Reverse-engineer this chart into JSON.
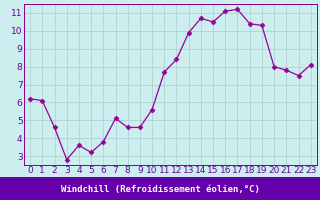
{
  "x": [
    0,
    1,
    2,
    3,
    4,
    5,
    6,
    7,
    8,
    9,
    10,
    11,
    12,
    13,
    14,
    15,
    16,
    17,
    18,
    19,
    20,
    21,
    22,
    23
  ],
  "y": [
    6.2,
    6.1,
    4.6,
    2.8,
    3.6,
    3.2,
    3.8,
    5.1,
    4.6,
    4.6,
    5.6,
    7.7,
    8.4,
    9.9,
    10.7,
    10.5,
    11.1,
    11.2,
    10.4,
    10.3,
    8.0,
    7.8,
    7.5,
    8.1
  ],
  "line_color": "#990099",
  "marker": "D",
  "marker_size": 2.5,
  "bg_color": "#cceeee",
  "grid_color": "#aacccc",
  "xlim": [
    -0.5,
    23.5
  ],
  "ylim": [
    2.5,
    11.5
  ],
  "yticks": [
    3,
    4,
    5,
    6,
    7,
    8,
    9,
    10,
    11
  ],
  "xticks": [
    0,
    1,
    2,
    3,
    4,
    5,
    6,
    7,
    8,
    9,
    10,
    11,
    12,
    13,
    14,
    15,
    16,
    17,
    18,
    19,
    20,
    21,
    22,
    23
  ],
  "xlabel": "Windchill (Refroidissement éolien,°C)",
  "xlabel_fontsize": 6.5,
  "tick_fontsize": 6.5,
  "label_color": "#660099",
  "tick_color": "#660099",
  "xlabel_bg": "#6600aa",
  "xlabel_text_color": "#ffffff",
  "spine_color": "#880088"
}
